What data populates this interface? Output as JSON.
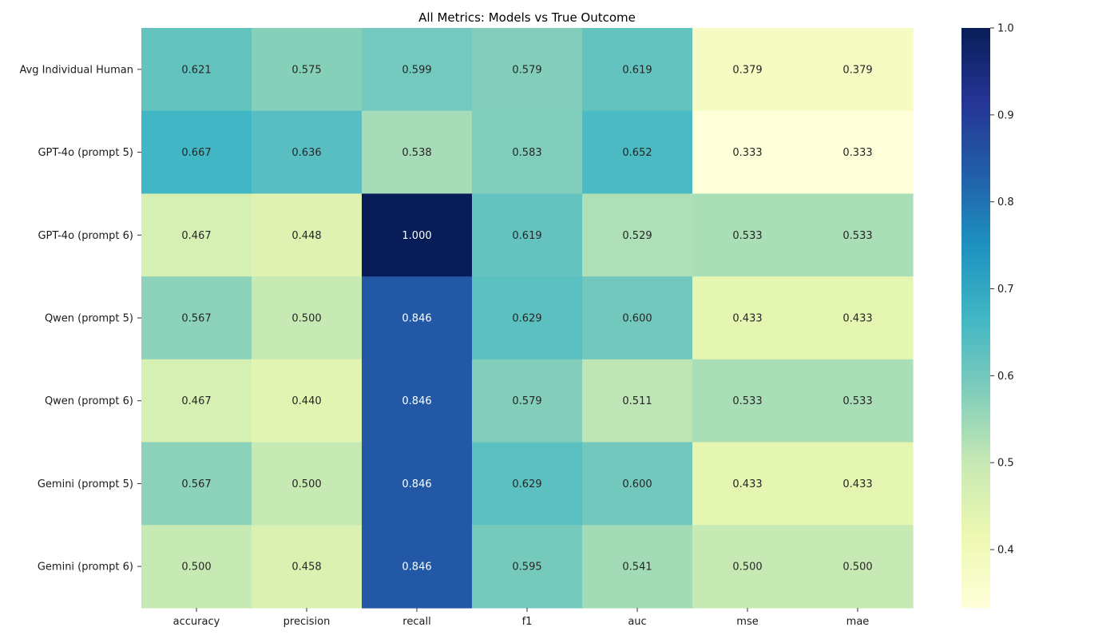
{
  "chart_data": {
    "type": "heatmap",
    "title": "All Metrics: Models vs True Outcome",
    "xlabel": "",
    "ylabel": "",
    "columns": [
      "accuracy",
      "precision",
      "recall",
      "f1",
      "auc",
      "mse",
      "mae"
    ],
    "rows": [
      "Avg Individual Human",
      "GPT-4o (prompt 5)",
      "GPT-4o (prompt 6)",
      "Qwen (prompt 5)",
      "Qwen (prompt 6)",
      "Gemini (prompt 5)",
      "Gemini (prompt 6)"
    ],
    "values": [
      [
        0.621,
        0.575,
        0.599,
        0.579,
        0.619,
        0.379,
        0.379
      ],
      [
        0.667,
        0.636,
        0.538,
        0.583,
        0.652,
        0.333,
        0.333
      ],
      [
        0.467,
        0.448,
        1.0,
        0.619,
        0.529,
        0.533,
        0.533
      ],
      [
        0.567,
        0.5,
        0.846,
        0.629,
        0.6,
        0.433,
        0.433
      ],
      [
        0.467,
        0.44,
        0.846,
        0.579,
        0.511,
        0.533,
        0.533
      ],
      [
        0.567,
        0.5,
        0.846,
        0.629,
        0.6,
        0.433,
        0.433
      ],
      [
        0.5,
        0.458,
        0.846,
        0.595,
        0.541,
        0.5,
        0.5
      ]
    ],
    "value_format": "0.000",
    "colormap": "YlGnBu",
    "color_range": [
      0.333,
      1.0
    ],
    "colorbar": {
      "ticks": [
        0.4,
        0.5,
        0.6,
        0.7,
        0.8,
        0.9,
        1.0
      ],
      "tick_labels": [
        "0.4",
        "0.5",
        "0.6",
        "0.7",
        "0.8",
        "0.9",
        "1.0"
      ]
    },
    "annotation_colors": {
      "dark": "#262626",
      "light": "#ffffff"
    }
  }
}
